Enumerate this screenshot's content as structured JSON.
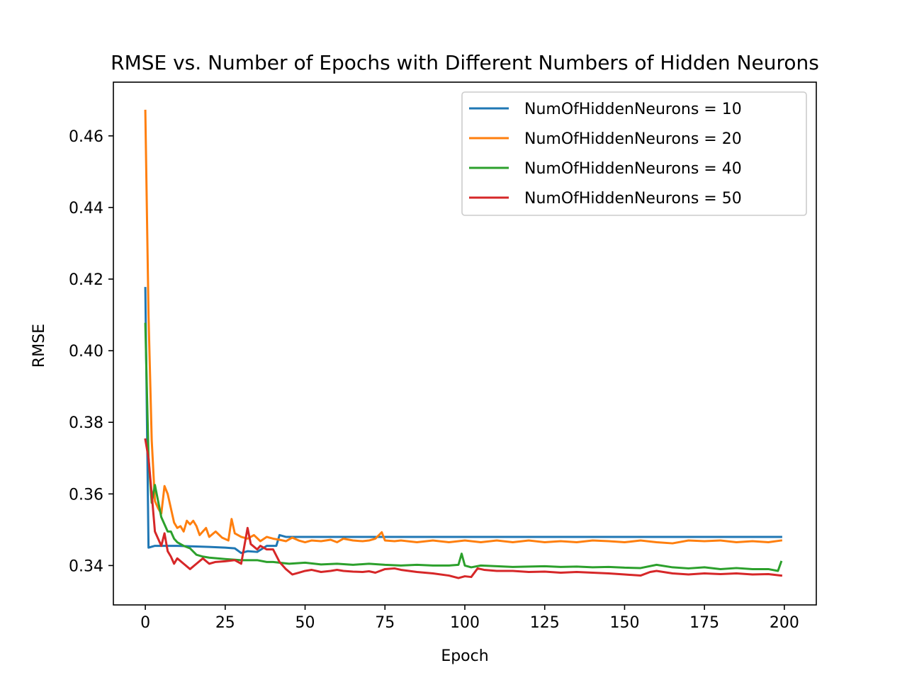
{
  "chart_data": {
    "type": "line",
    "title": "RMSE vs. Number of Epochs with Different Numbers of Hidden Neurons",
    "xlabel": "Epoch",
    "ylabel": "RMSE",
    "xlim": [
      -10,
      210
    ],
    "ylim": [
      0.329,
      0.475
    ],
    "xticks": [
      0,
      25,
      50,
      75,
      100,
      125,
      150,
      175,
      200
    ],
    "yticks": [
      0.34,
      0.36,
      0.38,
      0.4,
      0.42,
      0.44,
      0.46
    ],
    "xtick_labels": [
      "0",
      "25",
      "50",
      "75",
      "100",
      "125",
      "150",
      "175",
      "200"
    ],
    "ytick_labels": [
      "0.34",
      "0.36",
      "0.38",
      "0.40",
      "0.42",
      "0.44",
      "0.46"
    ],
    "grid": false,
    "legend_position": "top-right",
    "series": [
      {
        "name": "NumOfHiddenNeurons = 10",
        "color": "#1f77b4",
        "points": [
          [
            0,
            0.4175
          ],
          [
            1,
            0.345
          ],
          [
            3,
            0.3455
          ],
          [
            10,
            0.3455
          ],
          [
            20,
            0.3452
          ],
          [
            25,
            0.345
          ],
          [
            28,
            0.3448
          ],
          [
            30,
            0.3435
          ],
          [
            32,
            0.344
          ],
          [
            35,
            0.3438
          ],
          [
            38,
            0.3455
          ],
          [
            41,
            0.3455
          ],
          [
            42,
            0.3485
          ],
          [
            44,
            0.348
          ],
          [
            60,
            0.348
          ],
          [
            80,
            0.348
          ],
          [
            100,
            0.348
          ],
          [
            120,
            0.348
          ],
          [
            150,
            0.348
          ],
          [
            180,
            0.348
          ],
          [
            199,
            0.348
          ]
        ]
      },
      {
        "name": "NumOfHiddenNeurons = 20",
        "color": "#ff7f0e",
        "points": [
          [
            0,
            0.467
          ],
          [
            1,
            0.41
          ],
          [
            2,
            0.375
          ],
          [
            3,
            0.358
          ],
          [
            4,
            0.356
          ],
          [
            5,
            0.3545
          ],
          [
            6,
            0.3622
          ],
          [
            7,
            0.36
          ],
          [
            8,
            0.356
          ],
          [
            9,
            0.352
          ],
          [
            10,
            0.3505
          ],
          [
            11,
            0.351
          ],
          [
            12,
            0.3495
          ],
          [
            13,
            0.3525
          ],
          [
            14,
            0.3515
          ],
          [
            15,
            0.3525
          ],
          [
            16,
            0.351
          ],
          [
            17,
            0.3485
          ],
          [
            18,
            0.3495
          ],
          [
            19,
            0.3505
          ],
          [
            20,
            0.348
          ],
          [
            22,
            0.3495
          ],
          [
            24,
            0.3478
          ],
          [
            26,
            0.347
          ],
          [
            27,
            0.353
          ],
          [
            28,
            0.349
          ],
          [
            30,
            0.348
          ],
          [
            32,
            0.3475
          ],
          [
            34,
            0.3485
          ],
          [
            36,
            0.3468
          ],
          [
            38,
            0.348
          ],
          [
            40,
            0.3475
          ],
          [
            42,
            0.3472
          ],
          [
            44,
            0.3468
          ],
          [
            46,
            0.3478
          ],
          [
            48,
            0.347
          ],
          [
            50,
            0.3465
          ],
          [
            52,
            0.347
          ],
          [
            55,
            0.3468
          ],
          [
            58,
            0.3472
          ],
          [
            60,
            0.3465
          ],
          [
            62,
            0.3475
          ],
          [
            65,
            0.347
          ],
          [
            68,
            0.3468
          ],
          [
            70,
            0.347
          ],
          [
            72,
            0.3475
          ],
          [
            74,
            0.3493
          ],
          [
            75,
            0.347
          ],
          [
            78,
            0.3468
          ],
          [
            80,
            0.347
          ],
          [
            85,
            0.3465
          ],
          [
            90,
            0.347
          ],
          [
            95,
            0.3465
          ],
          [
            100,
            0.347
          ],
          [
            105,
            0.3465
          ],
          [
            110,
            0.347
          ],
          [
            115,
            0.3465
          ],
          [
            120,
            0.347
          ],
          [
            125,
            0.3465
          ],
          [
            130,
            0.3468
          ],
          [
            135,
            0.3465
          ],
          [
            140,
            0.347
          ],
          [
            145,
            0.3468
          ],
          [
            150,
            0.3465
          ],
          [
            155,
            0.347
          ],
          [
            160,
            0.3465
          ],
          [
            165,
            0.3462
          ],
          [
            170,
            0.347
          ],
          [
            175,
            0.3468
          ],
          [
            180,
            0.347
          ],
          [
            185,
            0.3465
          ],
          [
            190,
            0.3468
          ],
          [
            195,
            0.3465
          ],
          [
            199,
            0.347
          ]
        ]
      },
      {
        "name": "NumOfHiddenNeurons = 40",
        "color": "#2ca02c",
        "points": [
          [
            0,
            0.4075
          ],
          [
            1,
            0.37
          ],
          [
            2,
            0.3575
          ],
          [
            3,
            0.3625
          ],
          [
            4,
            0.358
          ],
          [
            5,
            0.3535
          ],
          [
            6,
            0.3515
          ],
          [
            7,
            0.3495
          ],
          [
            8,
            0.3495
          ],
          [
            9,
            0.3475
          ],
          [
            10,
            0.3465
          ],
          [
            12,
            0.3455
          ],
          [
            14,
            0.3448
          ],
          [
            16,
            0.343
          ],
          [
            18,
            0.3425
          ],
          [
            20,
            0.3422
          ],
          [
            25,
            0.3418
          ],
          [
            30,
            0.3415
          ],
          [
            35,
            0.3415
          ],
          [
            38,
            0.341
          ],
          [
            40,
            0.341
          ],
          [
            45,
            0.3405
          ],
          [
            50,
            0.3408
          ],
          [
            55,
            0.3403
          ],
          [
            60,
            0.3405
          ],
          [
            65,
            0.3402
          ],
          [
            70,
            0.3405
          ],
          [
            75,
            0.3402
          ],
          [
            80,
            0.34
          ],
          [
            85,
            0.3402
          ],
          [
            90,
            0.34
          ],
          [
            95,
            0.34
          ],
          [
            98,
            0.3402
          ],
          [
            99,
            0.3433
          ],
          [
            100,
            0.34
          ],
          [
            102,
            0.3395
          ],
          [
            105,
            0.34
          ],
          [
            110,
            0.3398
          ],
          [
            115,
            0.3396
          ],
          [
            120,
            0.3397
          ],
          [
            125,
            0.3398
          ],
          [
            130,
            0.3396
          ],
          [
            135,
            0.3397
          ],
          [
            140,
            0.3395
          ],
          [
            145,
            0.3396
          ],
          [
            150,
            0.3394
          ],
          [
            155,
            0.3393
          ],
          [
            160,
            0.3402
          ],
          [
            165,
            0.3395
          ],
          [
            170,
            0.3392
          ],
          [
            175,
            0.3395
          ],
          [
            180,
            0.339
          ],
          [
            185,
            0.3393
          ],
          [
            190,
            0.339
          ],
          [
            195,
            0.339
          ],
          [
            198,
            0.3385
          ],
          [
            199,
            0.341
          ]
        ]
      },
      {
        "name": "NumOfHiddenNeurons = 50",
        "color": "#d62728",
        "points": [
          [
            0,
            0.3752
          ],
          [
            1,
            0.37
          ],
          [
            2,
            0.36
          ],
          [
            3,
            0.3495
          ],
          [
            4,
            0.3475
          ],
          [
            5,
            0.3455
          ],
          [
            6,
            0.349
          ],
          [
            7,
            0.344
          ],
          [
            8,
            0.3425
          ],
          [
            9,
            0.3405
          ],
          [
            10,
            0.342
          ],
          [
            12,
            0.3405
          ],
          [
            14,
            0.339
          ],
          [
            16,
            0.3405
          ],
          [
            18,
            0.342
          ],
          [
            20,
            0.3405
          ],
          [
            22,
            0.341
          ],
          [
            25,
            0.3412
          ],
          [
            28,
            0.3415
          ],
          [
            30,
            0.3405
          ],
          [
            32,
            0.3505
          ],
          [
            33,
            0.346
          ],
          [
            35,
            0.3445
          ],
          [
            36,
            0.3455
          ],
          [
            38,
            0.3445
          ],
          [
            40,
            0.3445
          ],
          [
            42,
            0.341
          ],
          [
            44,
            0.339
          ],
          [
            46,
            0.3375
          ],
          [
            48,
            0.338
          ],
          [
            50,
            0.3385
          ],
          [
            52,
            0.3388
          ],
          [
            55,
            0.3382
          ],
          [
            58,
            0.3385
          ],
          [
            60,
            0.3388
          ],
          [
            62,
            0.3385
          ],
          [
            65,
            0.3383
          ],
          [
            68,
            0.3382
          ],
          [
            70,
            0.3384
          ],
          [
            72,
            0.338
          ],
          [
            75,
            0.339
          ],
          [
            78,
            0.3392
          ],
          [
            80,
            0.3388
          ],
          [
            85,
            0.3382
          ],
          [
            90,
            0.3378
          ],
          [
            95,
            0.3372
          ],
          [
            98,
            0.3365
          ],
          [
            100,
            0.337
          ],
          [
            102,
            0.3368
          ],
          [
            104,
            0.3392
          ],
          [
            106,
            0.3388
          ],
          [
            110,
            0.3385
          ],
          [
            115,
            0.3385
          ],
          [
            120,
            0.3382
          ],
          [
            125,
            0.3383
          ],
          [
            130,
            0.338
          ],
          [
            135,
            0.3382
          ],
          [
            140,
            0.338
          ],
          [
            145,
            0.3378
          ],
          [
            150,
            0.3375
          ],
          [
            155,
            0.3372
          ],
          [
            158,
            0.3382
          ],
          [
            160,
            0.3385
          ],
          [
            165,
            0.3378
          ],
          [
            170,
            0.3375
          ],
          [
            175,
            0.3378
          ],
          [
            180,
            0.3376
          ],
          [
            185,
            0.3378
          ],
          [
            190,
            0.3375
          ],
          [
            195,
            0.3376
          ],
          [
            199,
            0.3372
          ]
        ]
      }
    ]
  }
}
